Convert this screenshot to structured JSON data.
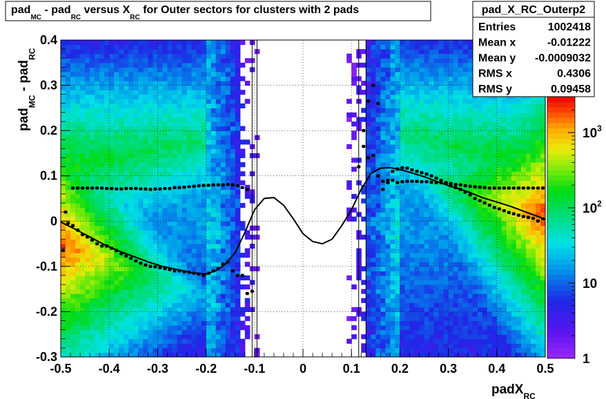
{
  "chart_data": {
    "type": "heatmap",
    "title": {
      "parts": [
        {
          "text": "pad",
          "style": "normal"
        },
        {
          "text": "MC",
          "style": "sub"
        },
        {
          "text": " - pad",
          "style": "normal"
        },
        {
          "text": "RC",
          "style": "sub"
        },
        {
          "text": " versus X",
          "style": "normal"
        },
        {
          "text": "RC",
          "style": "sub"
        },
        {
          "text": " for Outer sectors for clusters with 2 pads",
          "style": "normal"
        }
      ]
    },
    "xlabel": {
      "main": "padX",
      "sub": "RC"
    },
    "ylabel": {
      "parts": [
        {
          "text": "pad",
          "style": "normal"
        },
        {
          "text": "MC",
          "style": "sub"
        },
        {
          "text": " - pad",
          "style": "normal"
        },
        {
          "text": "RC",
          "style": "sub"
        }
      ]
    },
    "xlim": [
      -0.5,
      0.5
    ],
    "ylim": [
      -0.3,
      0.4
    ],
    "x_ticks": [
      "-0.5",
      "-0.4",
      "-0.3",
      "-0.2",
      "-0.1",
      "0",
      "0.1",
      "0.2",
      "0.3",
      "0.4",
      "0.5"
    ],
    "y_ticks": [
      "-0.3",
      "-0.2",
      "-0.1",
      "0",
      "0.1",
      "0.2",
      "0.3",
      "0.4"
    ],
    "grid": true,
    "z_scale": "log",
    "zlim": [
      1,
      3000
    ],
    "z_ticks": [
      {
        "value": 1,
        "label": "1"
      },
      {
        "value": 10,
        "label": "10"
      },
      {
        "value": 100,
        "label": "10",
        "sup": "2"
      },
      {
        "value": 1000,
        "label": "10",
        "sup": "3"
      }
    ],
    "stats": {
      "name": "pad_X_RC_Outerp2",
      "rows": [
        {
          "label": "Entries",
          "value": "1002418"
        },
        {
          "label": "Mean x",
          "value": "-0.01222"
        },
        {
          "label": "Mean y",
          "value": "-0.0009032"
        },
        {
          "label": "RMS x",
          "value": "0.4306"
        },
        {
          "label": "RMS y",
          "value": "0.09458"
        }
      ]
    },
    "profile_upper": {
      "x": [
        -0.49,
        -0.475,
        -0.465,
        -0.455,
        -0.445,
        -0.435,
        -0.425,
        -0.415,
        -0.405,
        -0.395,
        -0.385,
        -0.375,
        -0.365,
        -0.355,
        -0.345,
        -0.335,
        -0.325,
        -0.315,
        -0.305,
        -0.295,
        -0.285,
        -0.275,
        -0.265,
        -0.255,
        -0.245,
        -0.235,
        -0.225,
        -0.215,
        -0.205,
        -0.195,
        -0.185,
        -0.175,
        -0.165,
        -0.155,
        -0.145,
        -0.135,
        -0.125,
        -0.115,
        0.115,
        0.125,
        0.135,
        0.145,
        0.155,
        0.165,
        0.175,
        0.185,
        0.195,
        0.205,
        0.215,
        0.225,
        0.235,
        0.245,
        0.255,
        0.265,
        0.275,
        0.285,
        0.295,
        0.305,
        0.315,
        0.325,
        0.335,
        0.345,
        0.355,
        0.365,
        0.375,
        0.385,
        0.395,
        0.405,
        0.415,
        0.425,
        0.435,
        0.445,
        0.455,
        0.465,
        0.475,
        0.485,
        0.495
      ],
      "y": [
        0.02,
        0.073,
        0.073,
        0.073,
        0.073,
        0.073,
        0.073,
        0.073,
        0.072,
        0.072,
        0.071,
        0.071,
        0.072,
        0.072,
        0.072,
        0.071,
        0.071,
        0.07,
        0.071,
        0.071,
        0.072,
        0.072,
        0.074,
        0.074,
        0.075,
        0.076,
        0.077,
        0.078,
        0.079,
        0.079,
        0.08,
        0.08,
        0.08,
        0.081,
        0.08,
        0.078,
        0.074,
        0.07,
        0.12,
        0.165,
        0.14,
        0.145,
        0.1,
        0.088,
        0.085,
        0.09,
        0.085,
        0.087,
        0.088,
        0.088,
        0.088,
        0.087,
        0.087,
        0.086,
        0.085,
        0.085,
        0.084,
        0.083,
        0.081,
        0.08,
        0.078,
        0.077,
        0.076,
        0.075,
        0.074,
        0.073,
        0.073,
        0.073,
        0.073,
        0.073,
        0.073,
        0.073,
        0.073,
        0.073,
        0.073,
        0.073,
        0.073
      ]
    },
    "profile_lower": {
      "x": [
        -0.495,
        -0.485,
        -0.475,
        -0.465,
        -0.455,
        -0.445,
        -0.435,
        -0.425,
        -0.415,
        -0.405,
        -0.395,
        -0.385,
        -0.375,
        -0.365,
        -0.355,
        -0.345,
        -0.335,
        -0.325,
        -0.315,
        -0.305,
        -0.295,
        -0.285,
        -0.275,
        -0.265,
        -0.255,
        -0.245,
        -0.235,
        -0.225,
        -0.215,
        -0.205,
        -0.195,
        -0.185,
        -0.175,
        -0.165,
        -0.155,
        -0.145,
        -0.135,
        -0.125,
        -0.115,
        -0.105,
        0.125,
        0.135,
        0.145,
        0.155,
        0.165,
        0.175,
        0.185,
        0.195,
        0.205,
        0.215,
        0.225,
        0.235,
        0.245,
        0.255,
        0.265,
        0.275,
        0.285,
        0.295,
        0.305,
        0.315,
        0.325,
        0.335,
        0.345,
        0.355,
        0.365,
        0.375,
        0.385,
        0.395,
        0.405,
        0.415,
        0.425,
        0.435,
        0.445,
        0.455,
        0.465,
        0.475,
        0.485,
        0.495
      ],
      "y": [
        -0.065,
        -0.005,
        -0.01,
        -0.02,
        -0.03,
        -0.035,
        -0.042,
        -0.05,
        -0.055,
        -0.055,
        -0.06,
        -0.065,
        -0.072,
        -0.077,
        -0.082,
        -0.088,
        -0.093,
        -0.097,
        -0.1,
        -0.101,
        -0.103,
        -0.105,
        -0.107,
        -0.11,
        -0.11,
        -0.112,
        -0.113,
        -0.115,
        -0.117,
        -0.12,
        -0.115,
        -0.11,
        -0.105,
        -0.095,
        -0.09,
        -0.11,
        -0.12,
        -0.12,
        -0.16,
        -0.155,
        0.2,
        0.265,
        0.3,
        0.26,
        0.07,
        0.09,
        0.11,
        0.115,
        0.118,
        0.117,
        0.113,
        0.11,
        0.107,
        0.104,
        0.1,
        0.095,
        0.09,
        0.085,
        0.078,
        0.074,
        0.07,
        0.064,
        0.058,
        0.05,
        0.045,
        0.04,
        0.035,
        0.03,
        0.027,
        0.023,
        0.019,
        0.016,
        0.013,
        0.01,
        0.008,
        0.006,
        0.0,
        0.005
      ]
    },
    "fit_curve": {
      "x": [
        -0.5,
        -0.47,
        -0.44,
        -0.41,
        -0.38,
        -0.35,
        -0.32,
        -0.29,
        -0.26,
        -0.23,
        -0.2,
        -0.18,
        -0.16,
        -0.14,
        -0.12,
        -0.1,
        -0.08,
        -0.06,
        -0.04,
        -0.02,
        0.0,
        0.02,
        0.04,
        0.06,
        0.08,
        0.1,
        0.12,
        0.14,
        0.16,
        0.18,
        0.2,
        0.22,
        0.25,
        0.28,
        0.31,
        0.34,
        0.37,
        0.4,
        0.43,
        0.46,
        0.49,
        0.5
      ],
      "y": [
        -0.002,
        -0.018,
        -0.035,
        -0.052,
        -0.066,
        -0.078,
        -0.09,
        -0.1,
        -0.107,
        -0.114,
        -0.117,
        -0.11,
        -0.095,
        -0.07,
        -0.025,
        0.025,
        0.05,
        0.052,
        0.035,
        0.005,
        -0.028,
        -0.045,
        -0.05,
        -0.04,
        -0.01,
        0.025,
        0.07,
        0.105,
        0.117,
        0.118,
        0.114,
        0.108,
        0.098,
        0.086,
        0.075,
        0.065,
        0.052,
        0.042,
        0.032,
        0.02,
        0.008,
        0.004
      ]
    },
    "verticals": [
      -0.095,
      -0.105,
      0.115,
      0.13
    ]
  }
}
